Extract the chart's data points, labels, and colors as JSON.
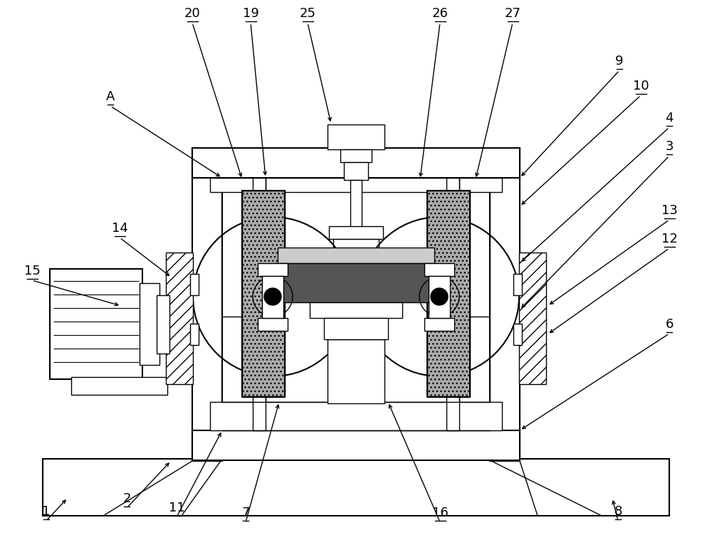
{
  "bg_color": "#ffffff",
  "lc": "#000000",
  "lw": 1.0,
  "tlw": 1.5,
  "figsize": [
    10.0,
    7.83
  ],
  "dpi": 100,
  "label_fontsize": 13
}
